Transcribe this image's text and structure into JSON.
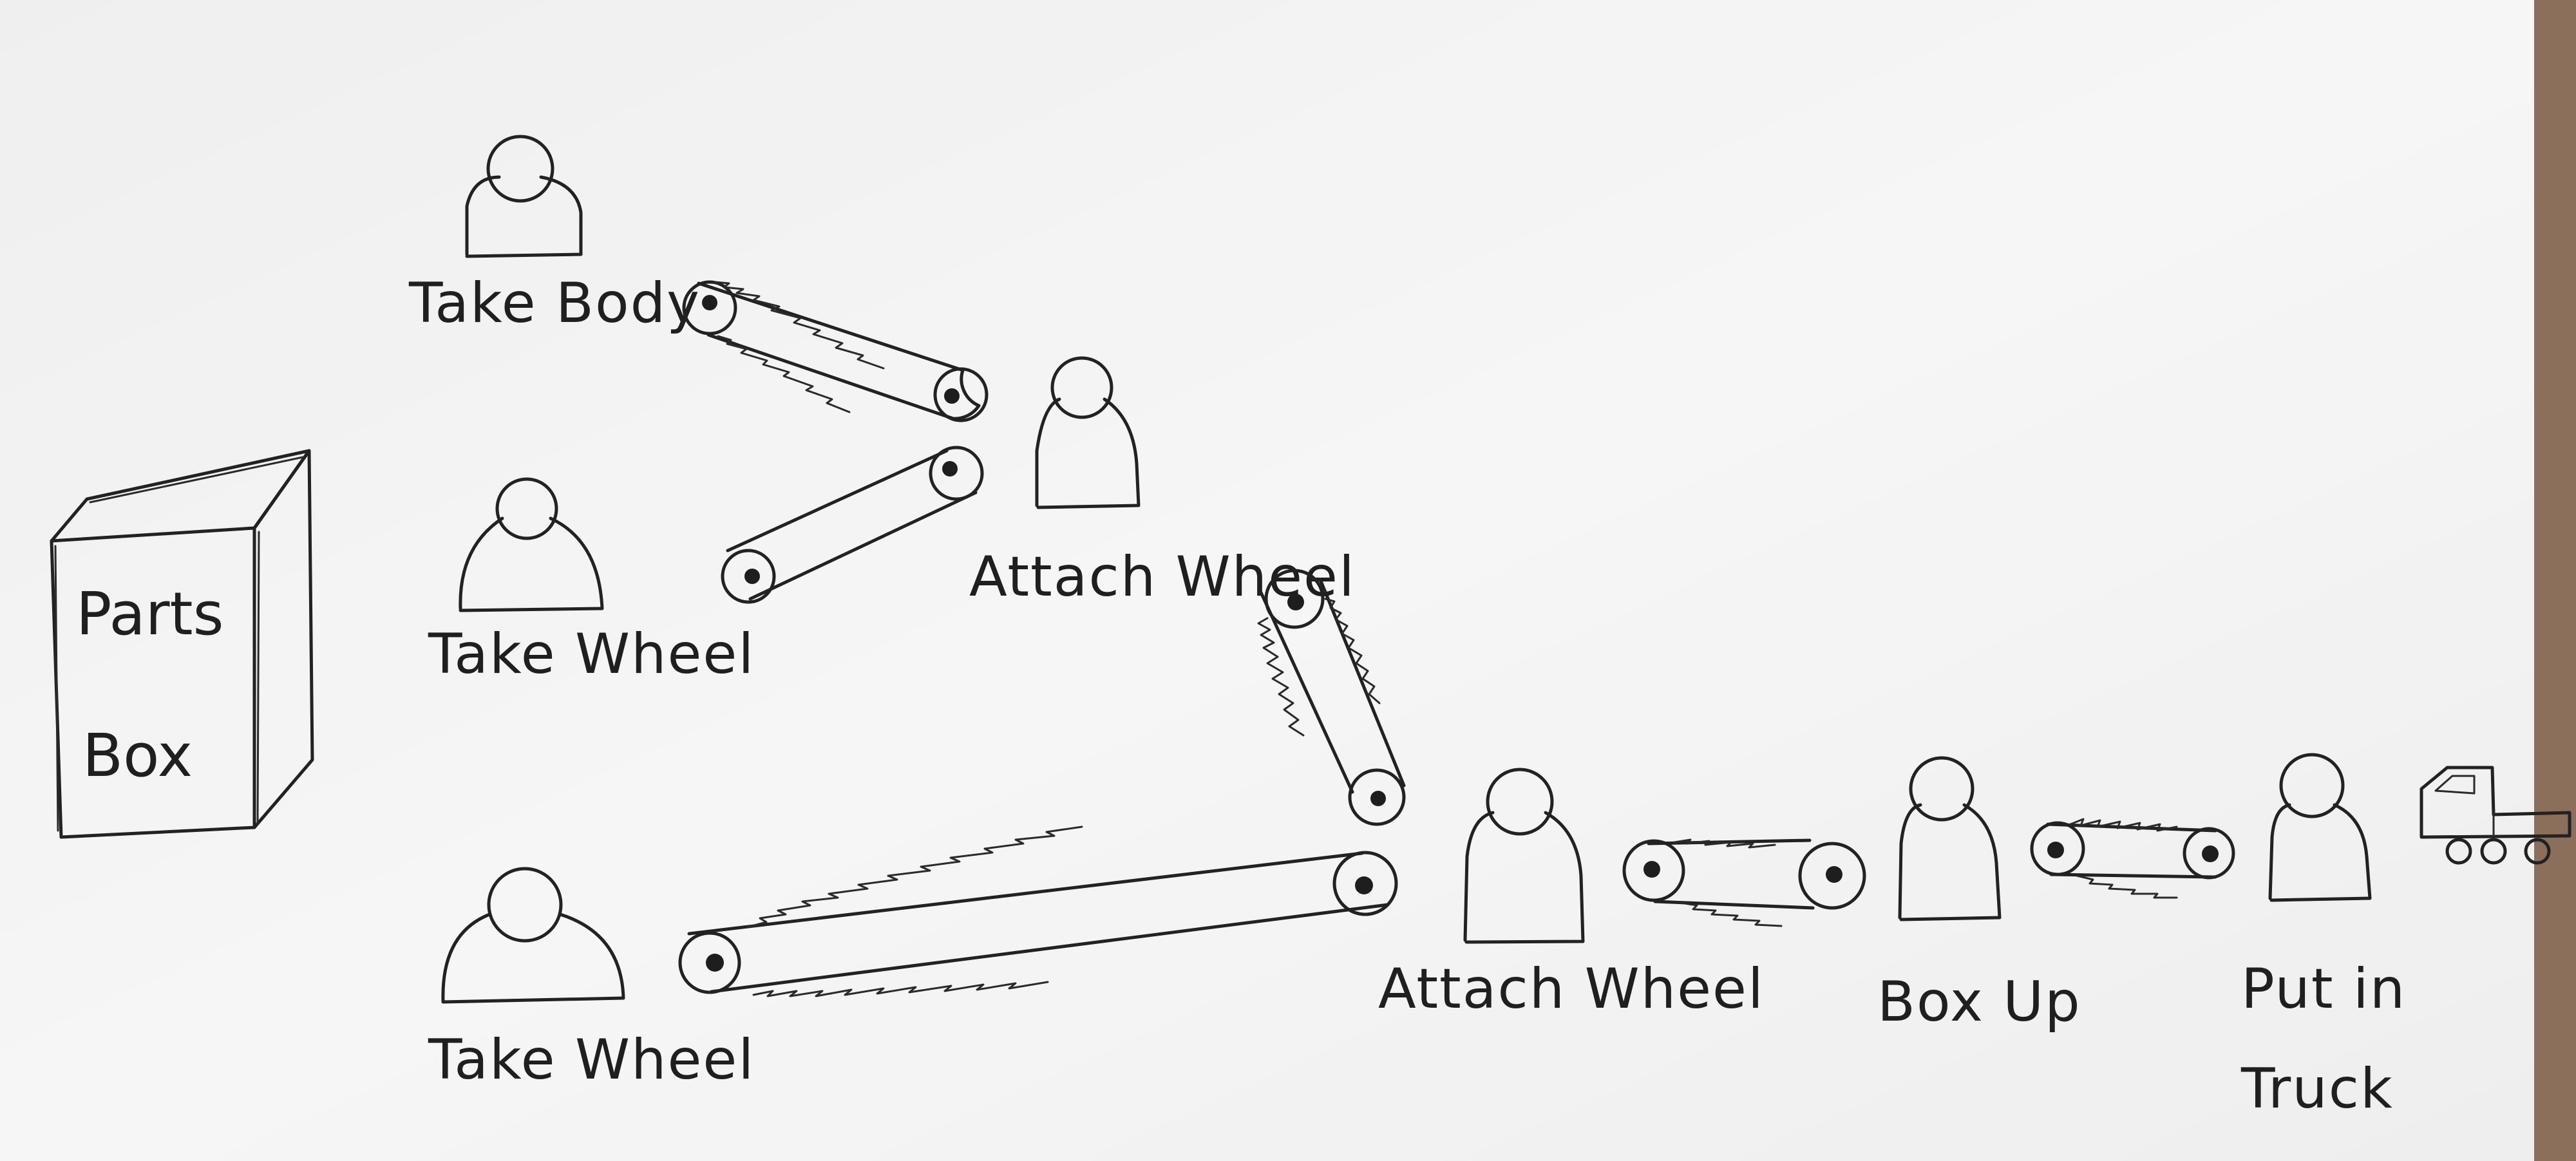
{
  "diagram": {
    "parts_box": {
      "label_line1": "Parts",
      "label_line2": "Box"
    },
    "workers": [
      {
        "id": "take-body",
        "label": "Take Body"
      },
      {
        "id": "take-wheel-1",
        "label": "Take Wheel"
      },
      {
        "id": "attach-wheel-1",
        "label": "Attach Wheel"
      },
      {
        "id": "take-wheel-2",
        "label": "Take Wheel"
      },
      {
        "id": "attach-wheel-2",
        "label": "Attach Wheel"
      },
      {
        "id": "box-up",
        "label": "Box Up"
      },
      {
        "id": "put-in-truck",
        "label_line1": "Put in",
        "label_line2": "Truck"
      }
    ],
    "conveyors": [
      {
        "from": "Take Body",
        "to": "Attach Wheel"
      },
      {
        "from": "Take Wheel",
        "to": "Attach Wheel"
      },
      {
        "from": "Attach Wheel",
        "to": "Attach Wheel"
      },
      {
        "from": "Take Wheel",
        "to": "Attach Wheel"
      },
      {
        "from": "Attach Wheel",
        "to": "Box Up"
      },
      {
        "from": "Box Up",
        "to": "Put in Truck"
      }
    ],
    "colors": {
      "paper": "#f3f3f3",
      "ink": "#222222",
      "background": "#e9e8e6"
    }
  }
}
